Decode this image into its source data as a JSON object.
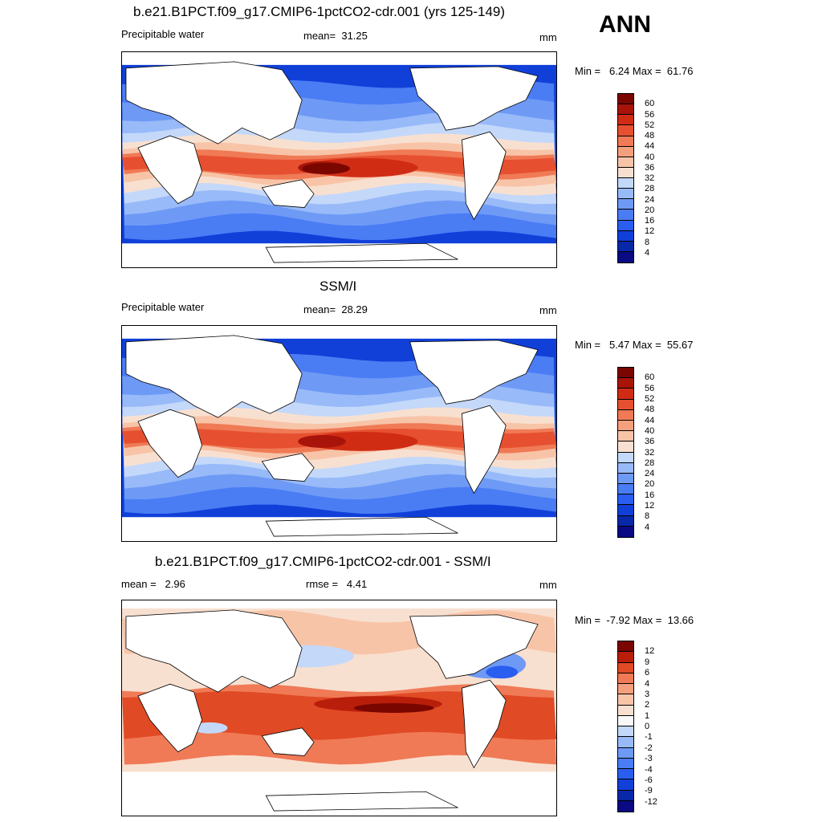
{
  "season": "ANN",
  "panels": [
    {
      "title": "b.e21.B1PCT.f09_g17.CMIP6-1pctCO2-cdr.001 (yrs 125-149)",
      "left_label": "Precipitable water",
      "center_label": "mean=  31.25",
      "units": "mm",
      "minmax": "Min =   6.24 Max =  61.76",
      "colorbar_labels": [
        "60",
        "56",
        "52",
        "48",
        "44",
        "40",
        "36",
        "32",
        "28",
        "24",
        "20",
        "16",
        "12",
        "8",
        "4"
      ]
    },
    {
      "title": "SSM/I",
      "left_label": "Precipitable water",
      "center_label": "mean=  28.29",
      "units": "mm",
      "minmax": "Min =   5.47 Max =  55.67",
      "colorbar_labels": [
        "60",
        "56",
        "52",
        "48",
        "44",
        "40",
        "36",
        "32",
        "28",
        "24",
        "20",
        "16",
        "12",
        "8",
        "4"
      ]
    },
    {
      "title": "b.e21.B1PCT.f09_g17.CMIP6-1pctCO2-cdr.001 - SSM/I",
      "left_label": "mean =   2.96",
      "center_label": "rmse =   4.41",
      "units": "mm",
      "minmax": "Min =  -7.92 Max =  13.66",
      "colorbar_labels": [
        "12",
        "9",
        "6",
        "4",
        "3",
        "2",
        "1",
        "0",
        "-1",
        "-2",
        "-3",
        "-4",
        "-6",
        "-9",
        "-12"
      ]
    }
  ],
  "colors": {
    "seq": [
      "#0a0a82",
      "#0828a8",
      "#1040d8",
      "#2a5ef0",
      "#4a7cf4",
      "#6e9af6",
      "#98baf8",
      "#c4d8fa",
      "#f8e0d0",
      "#f8c4a8",
      "#f4a07e",
      "#f07a56",
      "#e65030",
      "#d02c14",
      "#a8140a",
      "#7a0600"
    ],
    "diff": [
      "#0a0a82",
      "#0828a8",
      "#1040d8",
      "#2a5ef0",
      "#4a7cf4",
      "#6e9af6",
      "#98baf8",
      "#c4d8fa",
      "#f8f8f8",
      "#f8e0d0",
      "#f8c4a8",
      "#f4a07e",
      "#f07a56",
      "#e04a24",
      "#b81e0a",
      "#7a0600"
    ]
  }
}
